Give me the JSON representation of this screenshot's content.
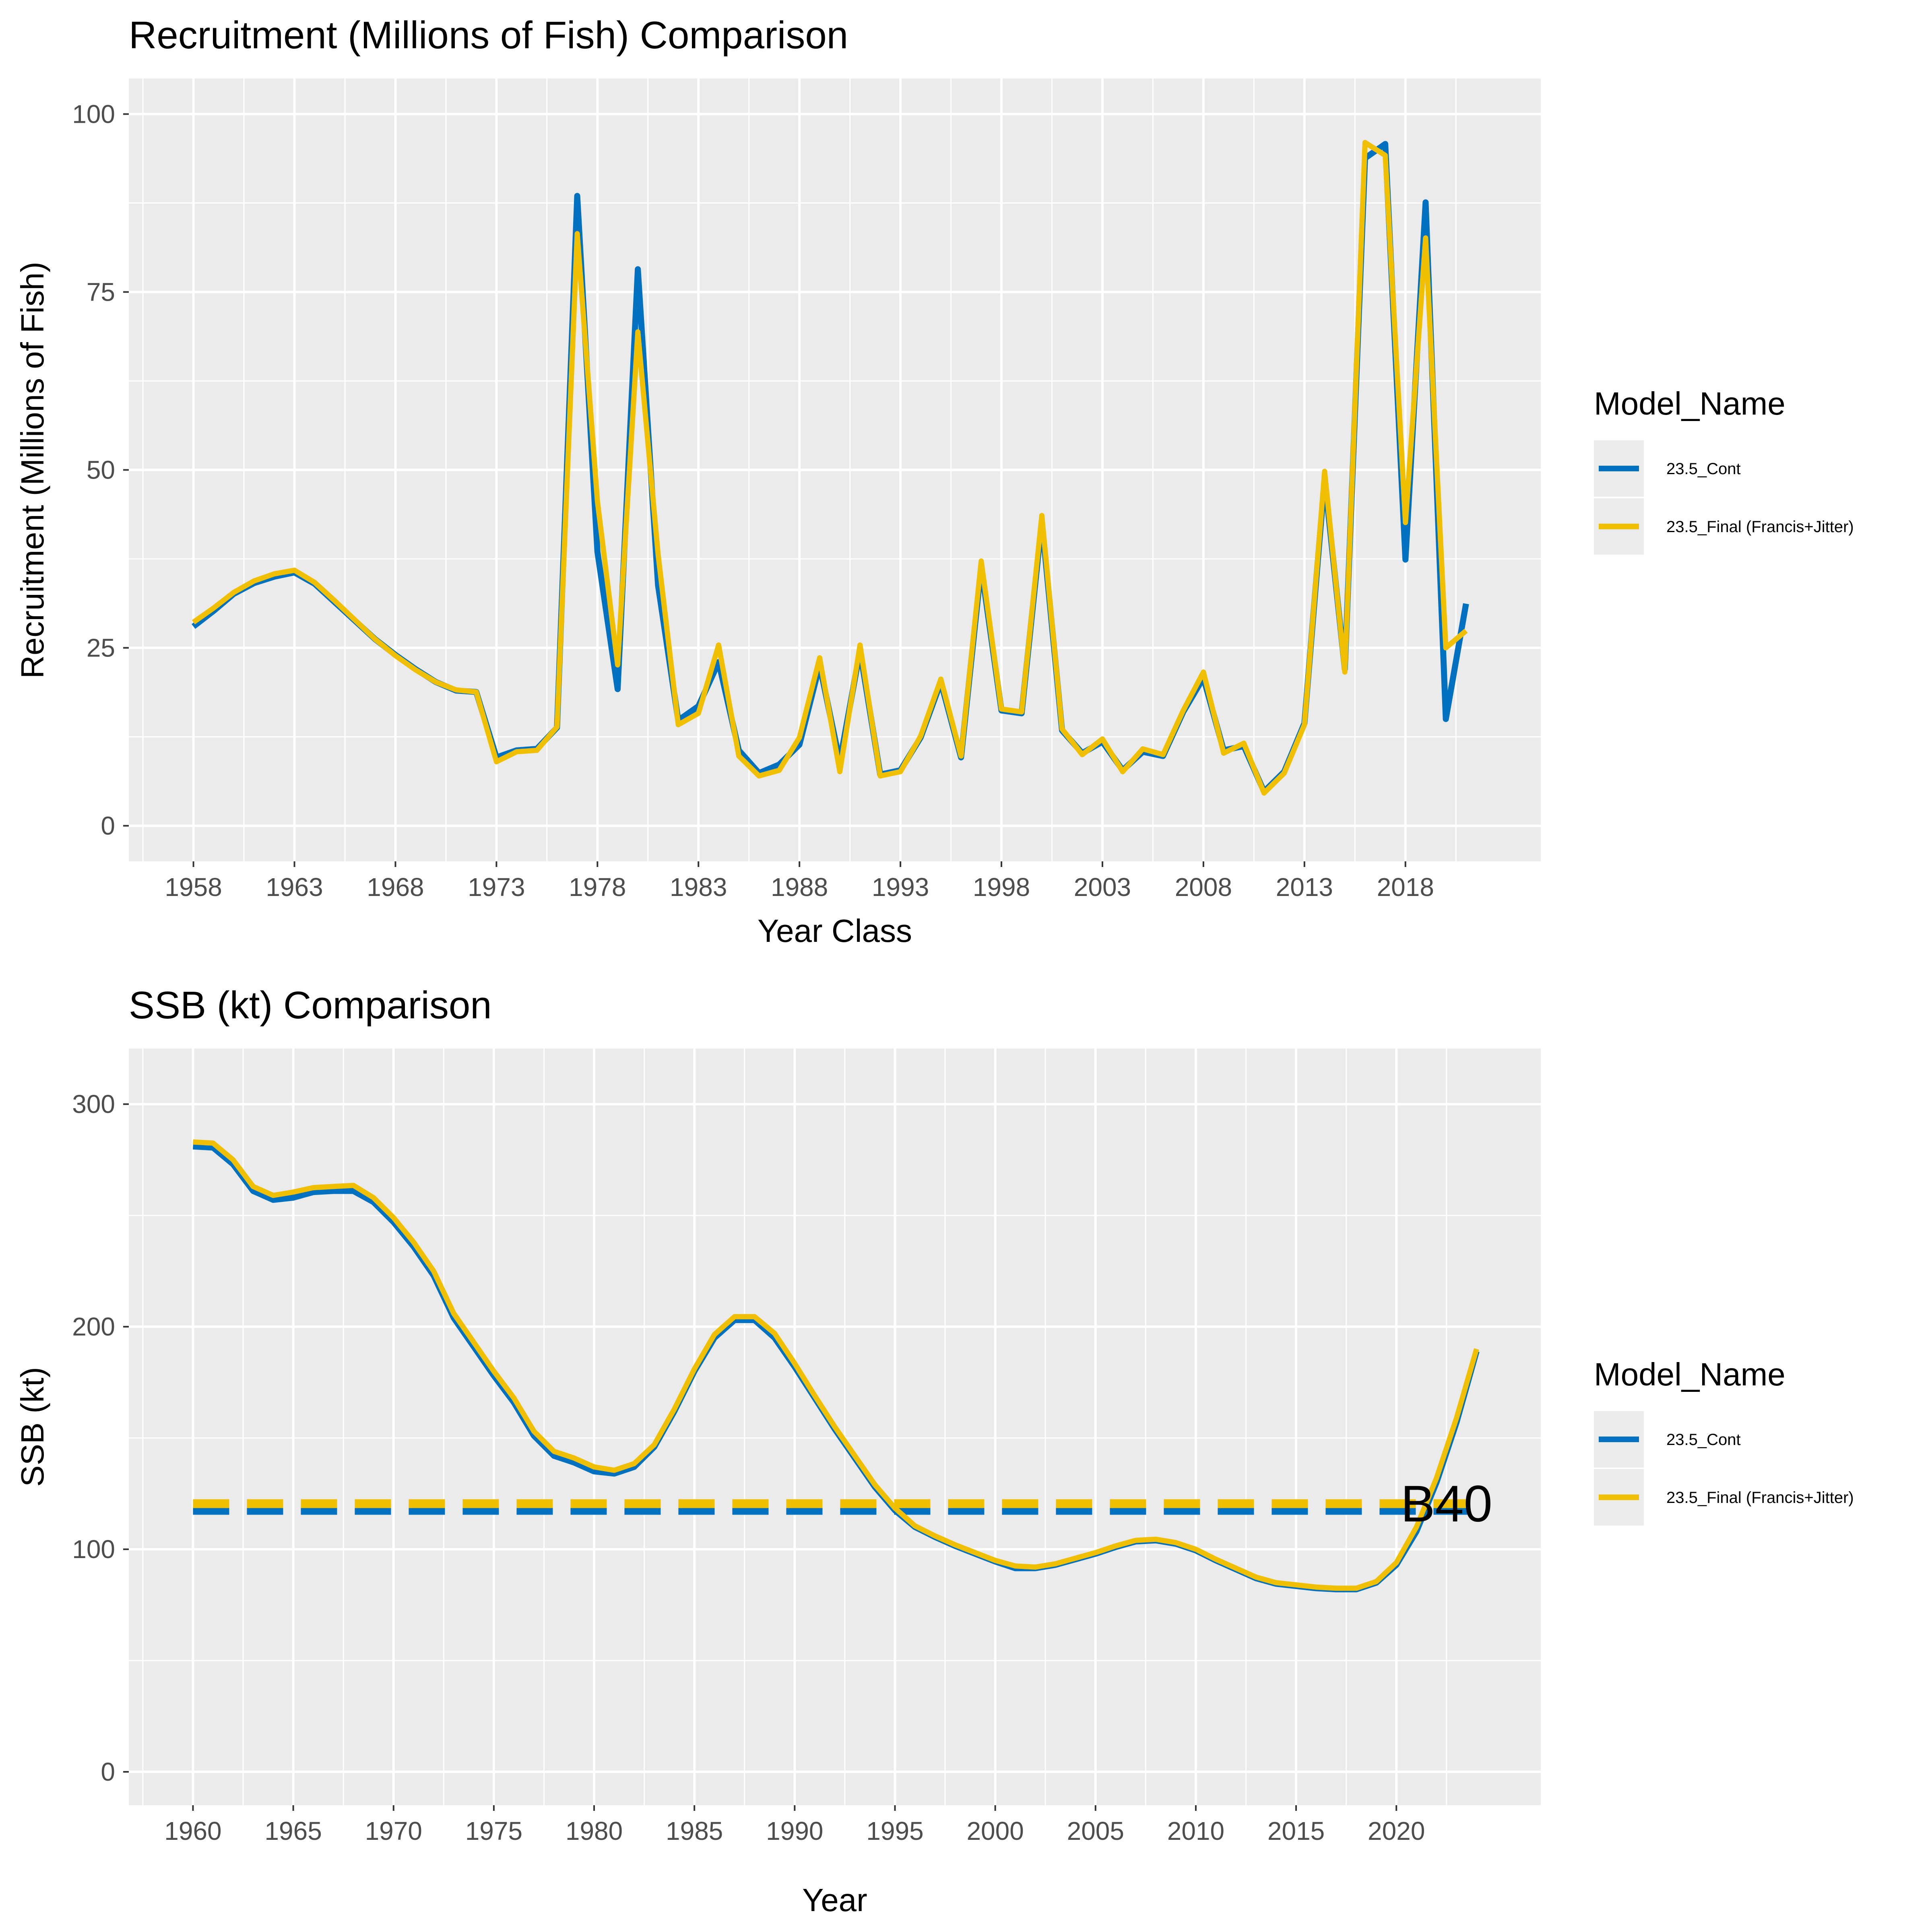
{
  "colors": {
    "cont": "#0070c0",
    "final": "#f0c000",
    "panel": "#ebebeb",
    "grid": "#ffffff"
  },
  "chart_data": [
    {
      "type": "line",
      "title": "Recruitment (Millions of Fish) Comparison",
      "xlabel": "Year Class",
      "ylabel": "Recruitment (Millions of Fish)",
      "xlim": [
        1954.8,
        2024.7
      ],
      "ylim": [
        -5,
        105
      ],
      "xticks": [
        1958,
        1963,
        1968,
        1973,
        1978,
        1983,
        1988,
        1993,
        1998,
        2003,
        2008,
        2013,
        2018
      ],
      "yticks": [
        0,
        25,
        50,
        75,
        100
      ],
      "grid": true,
      "legend": {
        "title": "Model_Name",
        "position": "right",
        "entries": [
          "23.5_Cont",
          "23.5_Final (Francis+Jitter)"
        ]
      },
      "x": [
        1958,
        1959,
        1960,
        1961,
        1962,
        1963,
        1964,
        1965,
        1966,
        1967,
        1968,
        1969,
        1970,
        1971,
        1972,
        1973,
        1974,
        1975,
        1976,
        1977,
        1978,
        1979,
        1980,
        1981,
        1982,
        1983,
        1984,
        1985,
        1986,
        1987,
        1988,
        1989,
        1990,
        1991,
        1992,
        1993,
        1994,
        1995,
        1996,
        1997,
        1998,
        1999,
        2000,
        2001,
        2002,
        2003,
        2004,
        2005,
        2006,
        2007,
        2008,
        2009,
        2010,
        2011,
        2012,
        2013,
        2014,
        2015,
        2016,
        2017,
        2018,
        2019,
        2020,
        2021
      ],
      "series": [
        {
          "name": "23.5_Cont",
          "values": [
            28.0,
            30.2,
            32.6,
            34.1,
            35.0,
            35.6,
            34.0,
            31.4,
            28.8,
            26.2,
            24.0,
            22.0,
            20.2,
            19.0,
            18.8,
            9.6,
            10.6,
            10.8,
            13.8,
            88.5,
            38.5,
            19.2,
            78.2,
            33.8,
            14.8,
            16.8,
            23.0,
            10.6,
            7.4,
            8.6,
            11.4,
            22.6,
            9.0,
            24.6,
            7.2,
            7.8,
            12.4,
            20.2,
            9.6,
            36.4,
            16.2,
            15.8,
            42.8,
            13.4,
            10.2,
            11.8,
            7.8,
            10.4,
            9.8,
            16.0,
            20.8,
            10.6,
            11.2,
            4.8,
            7.6,
            14.4,
            48.8,
            22.0,
            93.8,
            95.8,
            37.4,
            87.6,
            15.0,
            31.2
          ]
        },
        {
          "name": "23.5_Final (Francis+Jitter)",
          "values": [
            28.6,
            30.6,
            32.8,
            34.4,
            35.4,
            35.9,
            34.2,
            31.6,
            28.9,
            26.2,
            23.9,
            21.9,
            20.2,
            19.1,
            18.8,
            9.0,
            10.4,
            10.6,
            13.9,
            83.2,
            45.6,
            22.6,
            69.4,
            38.2,
            14.2,
            15.8,
            25.4,
            9.8,
            7.0,
            7.8,
            12.4,
            23.6,
            7.6,
            25.4,
            7.0,
            7.6,
            12.6,
            20.6,
            9.8,
            37.2,
            16.4,
            16.0,
            43.6,
            13.6,
            10.0,
            12.2,
            7.6,
            10.8,
            10.0,
            16.2,
            21.6,
            10.2,
            11.6,
            4.6,
            7.4,
            14.2,
            49.8,
            21.6,
            96.0,
            94.2,
            42.6,
            82.6,
            25.0,
            27.4
          ]
        }
      ]
    },
    {
      "type": "line",
      "title": "SSB (kt) Comparison",
      "xlabel": "Year",
      "ylabel": "SSB (kt)",
      "xlim": [
        1956.8,
        2027.2
      ],
      "ylim": [
        -15,
        325
      ],
      "xticks": [
        1960,
        1965,
        1970,
        1975,
        1980,
        1985,
        1990,
        1995,
        2000,
        2005,
        2010,
        2015,
        2020
      ],
      "yticks": [
        0,
        100,
        200,
        300
      ],
      "grid": true,
      "legend": {
        "title": "Model_Name",
        "position": "right",
        "entries": [
          "23.5_Cont",
          "23.5_Final (Francis+Jitter)"
        ]
      },
      "x": [
        1960,
        1961,
        1962,
        1963,
        1964,
        1965,
        1966,
        1967,
        1968,
        1969,
        1970,
        1971,
        1972,
        1973,
        1974,
        1975,
        1976,
        1977,
        1978,
        1979,
        1980,
        1981,
        1982,
        1983,
        1984,
        1985,
        1986,
        1987,
        1988,
        1989,
        1990,
        1991,
        1992,
        1993,
        1994,
        1995,
        1996,
        1997,
        1998,
        1999,
        2000,
        2001,
        2002,
        2003,
        2004,
        2005,
        2006,
        2007,
        2008,
        2009,
        2010,
        2011,
        2012,
        2013,
        2014,
        2015,
        2016,
        2017,
        2018,
        2019,
        2020,
        2021,
        2022,
        2023,
        2024
      ],
      "series": [
        {
          "name": "23.5_Cont",
          "values": [
            281,
            280.5,
            273,
            261,
            257,
            258,
            260.5,
            261,
            261,
            256,
            247,
            236,
            223,
            204,
            191,
            178,
            166,
            151,
            142,
            139,
            135,
            134,
            137,
            146,
            162,
            180,
            195,
            203,
            203,
            195,
            182,
            168,
            154,
            141,
            128,
            117.5,
            110,
            105.5,
            101.5,
            98,
            94.5,
            91.5,
            91.5,
            93,
            95.5,
            98,
            101,
            103.5,
            104,
            102.5,
            99.5,
            95,
            91,
            87,
            84.5,
            83.5,
            82.5,
            82,
            82,
            85,
            93,
            108,
            130,
            157,
            189
          ]
        },
        {
          "name": "23.5_Final (Francis+Jitter)",
          "values": [
            283,
            282.5,
            275,
            263,
            259,
            260.5,
            262.5,
            263,
            263.5,
            258,
            249,
            238,
            225,
            206,
            193,
            180,
            168,
            153,
            144,
            141,
            137,
            135.5,
            138.5,
            147,
            163,
            181,
            196.5,
            204.5,
            204.5,
            197,
            183.5,
            169,
            155,
            142,
            129,
            118.5,
            110.5,
            106,
            102,
            98.5,
            95,
            92.5,
            92,
            93.5,
            96,
            98.5,
            101.5,
            104,
            104.5,
            103,
            100,
            95.5,
            91.5,
            87.5,
            85,
            84,
            83,
            82.5,
            82.5,
            85.5,
            94,
            110,
            132,
            159,
            190
          ]
        }
      ],
      "reference_lines": {
        "label": "B40",
        "cont": 117.5,
        "final": 120.5,
        "x_start": 1960,
        "x_end": 2024
      }
    }
  ]
}
